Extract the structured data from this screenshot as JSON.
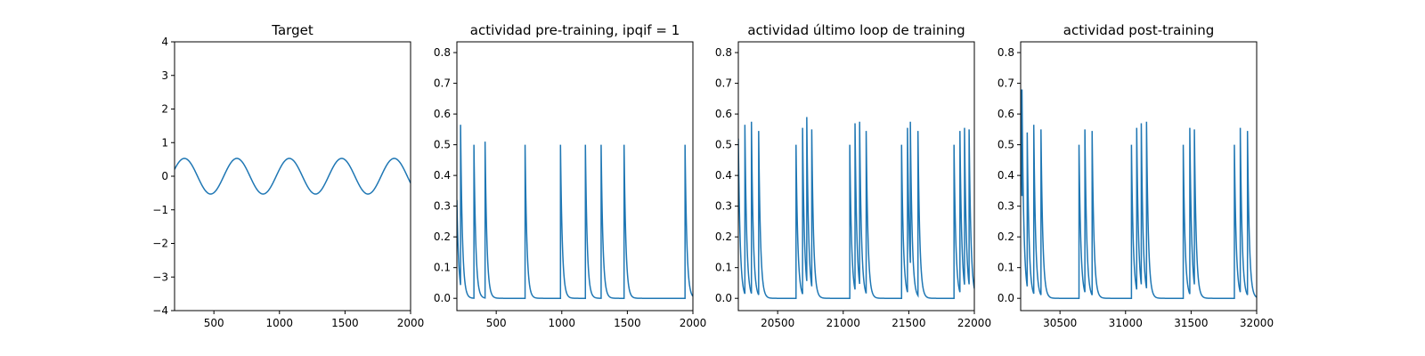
{
  "colors": {
    "series": "#1f77b4",
    "axes": "#000000",
    "background": "#ffffff"
  },
  "chart_data": [
    {
      "type": "line",
      "title": "Target",
      "xlim": [
        200,
        2000
      ],
      "ylim": [
        -4,
        4
      ],
      "xticks": [
        500,
        1000,
        1500,
        2000
      ],
      "xtick_labels": [
        "500",
        "1000",
        "1500",
        "2000"
      ],
      "yticks": [
        -4,
        -3,
        -2,
        -1,
        0,
        1,
        2,
        3,
        4
      ],
      "ytick_labels": [
        "−4",
        "−3",
        "−2",
        "−1",
        "0",
        "1",
        "2",
        "3",
        "4"
      ],
      "grid": false,
      "series": [
        {
          "kind": "sine",
          "amplitude": 0.53,
          "period": 400,
          "peak_x": [
            275,
            675,
            1075,
            1475,
            1875
          ],
          "trough_x": [
            475,
            875,
            1275,
            1675
          ],
          "y_at_xmin": 0.17,
          "y_at_xmax": -0.17
        }
      ]
    },
    {
      "type": "line",
      "title": "actividad pre-training, ipqif = 1",
      "xlim": [
        200,
        2000
      ],
      "ylim": [
        -0.04,
        0.835
      ],
      "xticks": [
        500,
        1000,
        1500,
        2000
      ],
      "xtick_labels": [
        "500",
        "1000",
        "1500",
        "2000"
      ],
      "yticks": [
        0.0,
        0.1,
        0.2,
        0.3,
        0.4,
        0.5,
        0.6,
        0.7,
        0.8
      ],
      "ytick_labels": [
        "0.0",
        "0.1",
        "0.2",
        "0.3",
        "0.4",
        "0.5",
        "0.6",
        "0.7",
        "0.8"
      ],
      "grid": false,
      "series": [
        {
          "kind": "spike_train",
          "start_value": 0.32,
          "decay_constant": 14,
          "spikes": [
            {
              "x": 228,
              "y": 0.565
            },
            {
              "x": 330,
              "y": 0.5
            },
            {
              "x": 415,
              "y": 0.51
            },
            {
              "x": 720,
              "y": 0.5
            },
            {
              "x": 990,
              "y": 0.5
            },
            {
              "x": 1180,
              "y": 0.5
            },
            {
              "x": 1300,
              "y": 0.5
            },
            {
              "x": 1475,
              "y": 0.5
            },
            {
              "x": 1940,
              "y": 0.5
            }
          ]
        }
      ]
    },
    {
      "type": "line",
      "title": "actividad último loop de training",
      "xlim": [
        20200,
        22000
      ],
      "ylim": [
        -0.04,
        0.835
      ],
      "xticks": [
        20500,
        21000,
        21500,
        22000
      ],
      "xtick_labels": [
        "20500",
        "21000",
        "21500",
        "22000"
      ],
      "yticks": [
        0.0,
        0.1,
        0.2,
        0.3,
        0.4,
        0.5,
        0.6,
        0.7,
        0.8
      ],
      "ytick_labels": [
        "0.0",
        "0.1",
        "0.2",
        "0.3",
        "0.4",
        "0.5",
        "0.6",
        "0.7",
        "0.8"
      ],
      "grid": false,
      "series": [
        {
          "kind": "spike_train",
          "start_value": 0.52,
          "decay_constant": 14,
          "spikes": [
            {
              "x": 20250,
              "y": 0.565
            },
            {
              "x": 20300,
              "y": 0.575
            },
            {
              "x": 20355,
              "y": 0.545
            },
            {
              "x": 20640,
              "y": 0.5
            },
            {
              "x": 20690,
              "y": 0.555
            },
            {
              "x": 20722,
              "y": 0.59
            },
            {
              "x": 20760,
              "y": 0.55
            },
            {
              "x": 21050,
              "y": 0.5
            },
            {
              "x": 21090,
              "y": 0.57
            },
            {
              "x": 21125,
              "y": 0.575
            },
            {
              "x": 21175,
              "y": 0.545
            },
            {
              "x": 21445,
              "y": 0.5
            },
            {
              "x": 21490,
              "y": 0.555
            },
            {
              "x": 21512,
              "y": 0.575
            },
            {
              "x": 21570,
              "y": 0.545
            },
            {
              "x": 21845,
              "y": 0.5
            },
            {
              "x": 21890,
              "y": 0.545
            },
            {
              "x": 21925,
              "y": 0.555
            },
            {
              "x": 21960,
              "y": 0.55
            }
          ]
        }
      ]
    },
    {
      "type": "line",
      "title": "actividad post-training",
      "xlim": [
        30200,
        32000
      ],
      "ylim": [
        -0.04,
        0.835
      ],
      "xticks": [
        30500,
        31000,
        31500,
        32000
      ],
      "xtick_labels": [
        "30500",
        "31000",
        "31500",
        "32000"
      ],
      "yticks": [
        0.0,
        0.1,
        0.2,
        0.3,
        0.4,
        0.5,
        0.6,
        0.7,
        0.8
      ],
      "ytick_labels": [
        "0.0",
        "0.1",
        "0.2",
        "0.3",
        "0.4",
        "0.5",
        "0.6",
        "0.7",
        "0.8"
      ],
      "grid": false,
      "series": [
        {
          "kind": "spike_train",
          "start_value": 0.68,
          "decay_constant": 14,
          "spikes": [
            {
              "x": 30210,
              "y": 0.68
            },
            {
              "x": 30250,
              "y": 0.54
            },
            {
              "x": 30300,
              "y": 0.565
            },
            {
              "x": 30355,
              "y": 0.55
            },
            {
              "x": 30645,
              "y": 0.5
            },
            {
              "x": 30690,
              "y": 0.55
            },
            {
              "x": 30745,
              "y": 0.545
            },
            {
              "x": 31045,
              "y": 0.5
            },
            {
              "x": 31085,
              "y": 0.555
            },
            {
              "x": 31120,
              "y": 0.57
            },
            {
              "x": 31160,
              "y": 0.575
            },
            {
              "x": 31440,
              "y": 0.5
            },
            {
              "x": 31490,
              "y": 0.555
            },
            {
              "x": 31525,
              "y": 0.55
            },
            {
              "x": 31830,
              "y": 0.5
            },
            {
              "x": 31875,
              "y": 0.555
            },
            {
              "x": 31930,
              "y": 0.545
            }
          ]
        }
      ]
    }
  ]
}
